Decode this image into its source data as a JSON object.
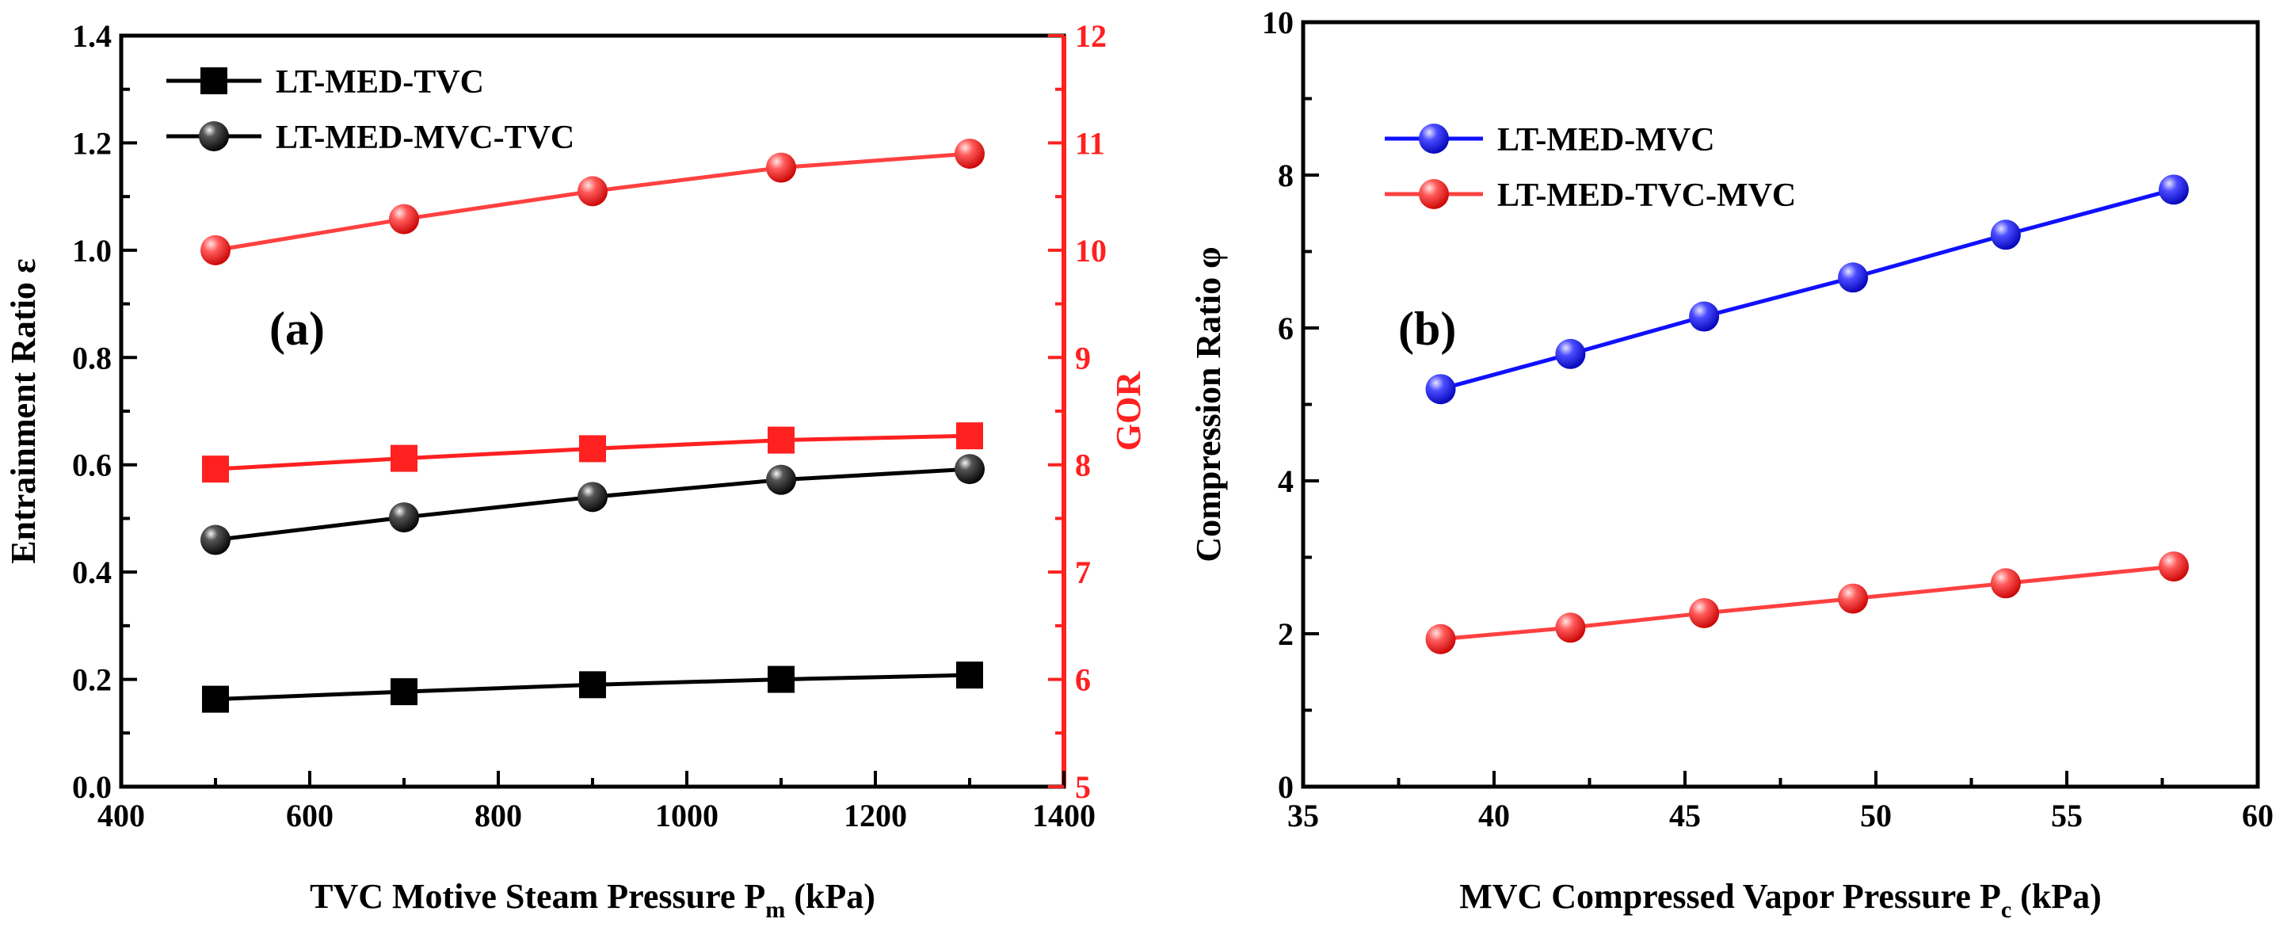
{
  "colors": {
    "black": "#000000",
    "red": "#ff2020",
    "red_line": "#ff4040",
    "blue": "#1010ff",
    "axis": "#000000"
  },
  "chart_data": [
    {
      "type": "line",
      "panel_label": "(a)",
      "xlabel": {
        "main": "TVC Motive Steam Pressure P",
        "sub": "m",
        "unit": " (kPa)"
      },
      "ylabel": "Entrainment Ratio ε",
      "y2label": "GOR",
      "xlim": [
        400,
        1400
      ],
      "ylim": [
        0.0,
        1.4
      ],
      "y2lim": [
        5,
        12
      ],
      "xticks": [
        "400",
        "600",
        "800",
        "1000",
        "1200",
        "1400"
      ],
      "yticks": [
        "0.0",
        "0.2",
        "0.4",
        "0.6",
        "0.8",
        "1.0",
        "1.2",
        "1.4"
      ],
      "y2ticks": [
        "5",
        "6",
        "7",
        "8",
        "9",
        "10",
        "11",
        "12"
      ],
      "x": [
        500,
        700,
        900,
        1100,
        1300
      ],
      "legend": [
        "LT-MED-TVC",
        "LT-MED-MVC-TVC"
      ],
      "series": [
        {
          "name": "LT-MED-TVC",
          "axis": "left",
          "marker": "square",
          "color": "#000000",
          "values": [
            0.163,
            0.177,
            0.19,
            0.2,
            0.208
          ]
        },
        {
          "name": "LT-MED-MVC-TVC",
          "axis": "left",
          "marker": "sphere",
          "color": "#000000",
          "values": [
            0.46,
            0.502,
            0.54,
            0.572,
            0.592
          ]
        },
        {
          "name": "LT-MED-TVC GOR",
          "axis": "right",
          "marker": "square",
          "color": "#ff2020",
          "values": [
            7.96,
            8.06,
            8.15,
            8.23,
            8.27
          ]
        },
        {
          "name": "LT-MED-MVC-TVC GOR",
          "axis": "right",
          "marker": "sphere",
          "color": "#ff4040",
          "values": [
            10.0,
            10.29,
            10.55,
            10.77,
            10.9
          ]
        }
      ]
    },
    {
      "type": "line",
      "panel_label": "(b)",
      "xlabel": {
        "main": "MVC Compressed Vapor Pressure  P",
        "sub": "c",
        "unit": " (kPa)"
      },
      "ylabel": "Compression Ratio φ",
      "xlim": [
        35,
        60
      ],
      "ylim": [
        0,
        10
      ],
      "xticks": [
        "35",
        "40",
        "45",
        "50",
        "55",
        "60"
      ],
      "yticks": [
        "0",
        "2",
        "4",
        "6",
        "8",
        "10"
      ],
      "legend": [
        "LT-MED-MVC",
        "LT-MED-TVC-MVC"
      ],
      "series": [
        {
          "name": "LT-MED-MVC",
          "marker": "sphere",
          "color": "#1010ff",
          "x": [
            38.6,
            42.0,
            45.5,
            49.4,
            53.4,
            57.8
          ],
          "values": [
            5.2,
            5.66,
            6.15,
            6.66,
            7.22,
            7.81
          ]
        },
        {
          "name": "LT-MED-TVC-MVC",
          "marker": "sphere",
          "color": "#ff4040",
          "x": [
            38.6,
            42.0,
            45.5,
            49.4,
            53.4,
            57.8
          ],
          "values": [
            1.93,
            2.08,
            2.27,
            2.46,
            2.66,
            2.88
          ]
        }
      ]
    }
  ]
}
